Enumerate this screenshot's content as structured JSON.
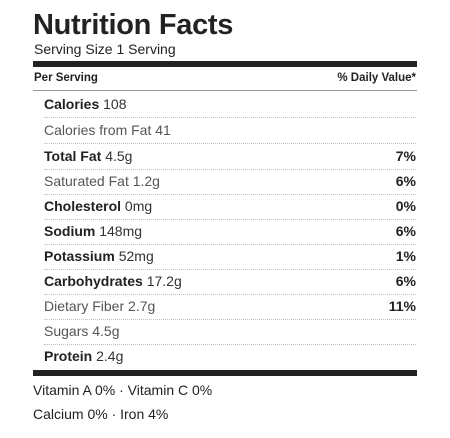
{
  "title": "Nutrition Facts",
  "serving_size": "Serving Size 1 Serving",
  "header": {
    "left": "Per Serving",
    "right": "% Daily Value*"
  },
  "rows": [
    {
      "name": "Calories",
      "value": "108",
      "dv": ""
    },
    {
      "name": "Calories from Fat",
      "value": "41",
      "dv": ""
    },
    {
      "name": "Total Fat",
      "value": "4.5g",
      "dv": "7%"
    },
    {
      "name": "Saturated Fat",
      "value": "1.2g",
      "dv": "6%"
    },
    {
      "name": "Cholesterol",
      "value": "0mg",
      "dv": "0%"
    },
    {
      "name": "Sodium",
      "value": "148mg",
      "dv": "6%"
    },
    {
      "name": "Potassium",
      "value": "52mg",
      "dv": "1%"
    },
    {
      "name": "Carbohydrates",
      "value": "17.2g",
      "dv": "6%"
    },
    {
      "name": "Dietary Fiber",
      "value": "2.7g",
      "dv": "11%"
    },
    {
      "name": "Sugars",
      "value": "4.5g",
      "dv": ""
    },
    {
      "name": "Protein",
      "value": "2.4g",
      "dv": ""
    }
  ],
  "vitamins_line1": "Vitamin A 0% · Vitamin C 0%",
  "vitamins_line2": "Calcium 0% · Iron 4%"
}
